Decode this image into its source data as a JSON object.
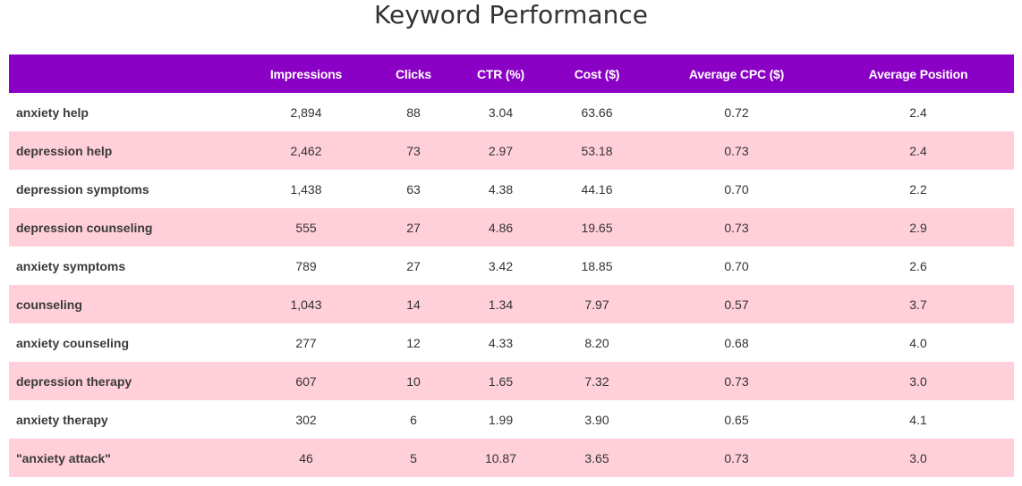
{
  "title": "Keyword Performance",
  "colors": {
    "header_bg": "#8B00C5",
    "header_text": "#ffffff",
    "stripe_bg": "#FFD0DA",
    "row_bg": "#ffffff",
    "text": "#333333"
  },
  "table": {
    "headers": [
      "",
      "Impressions",
      "Clicks",
      "CTR (%)",
      "Cost ($)",
      "Average CPC ($)",
      "Average Position"
    ],
    "rows": [
      {
        "keyword": "anxiety help",
        "impressions": "2,894",
        "clicks": "88",
        "ctr": "3.04",
        "cost": "63.66",
        "cpc": "0.72",
        "position": "2.4"
      },
      {
        "keyword": "depression help",
        "impressions": "2,462",
        "clicks": "73",
        "ctr": "2.97",
        "cost": "53.18",
        "cpc": "0.73",
        "position": "2.4"
      },
      {
        "keyword": "depression symptoms",
        "impressions": "1,438",
        "clicks": "63",
        "ctr": "4.38",
        "cost": "44.16",
        "cpc": "0.70",
        "position": "2.2"
      },
      {
        "keyword": "depression counseling",
        "impressions": "555",
        "clicks": "27",
        "ctr": "4.86",
        "cost": "19.65",
        "cpc": "0.73",
        "position": "2.9"
      },
      {
        "keyword": "anxiety symptoms",
        "impressions": "789",
        "clicks": "27",
        "ctr": "3.42",
        "cost": "18.85",
        "cpc": "0.70",
        "position": "2.6"
      },
      {
        "keyword": "counseling",
        "impressions": "1,043",
        "clicks": "14",
        "ctr": "1.34",
        "cost": "7.97",
        "cpc": "0.57",
        "position": "3.7"
      },
      {
        "keyword": "anxiety counseling",
        "impressions": "277",
        "clicks": "12",
        "ctr": "4.33",
        "cost": "8.20",
        "cpc": "0.68",
        "position": "4.0"
      },
      {
        "keyword": "depression therapy",
        "impressions": "607",
        "clicks": "10",
        "ctr": "1.65",
        "cost": "7.32",
        "cpc": "0.73",
        "position": "3.0"
      },
      {
        "keyword": "anxiety therapy",
        "impressions": "302",
        "clicks": "6",
        "ctr": "1.99",
        "cost": "3.90",
        "cpc": "0.65",
        "position": "4.1"
      },
      {
        "keyword": "\"anxiety attack\"",
        "impressions": "46",
        "clicks": "5",
        "ctr": "10.87",
        "cost": "3.65",
        "cpc": "0.73",
        "position": "3.0"
      }
    ]
  }
}
